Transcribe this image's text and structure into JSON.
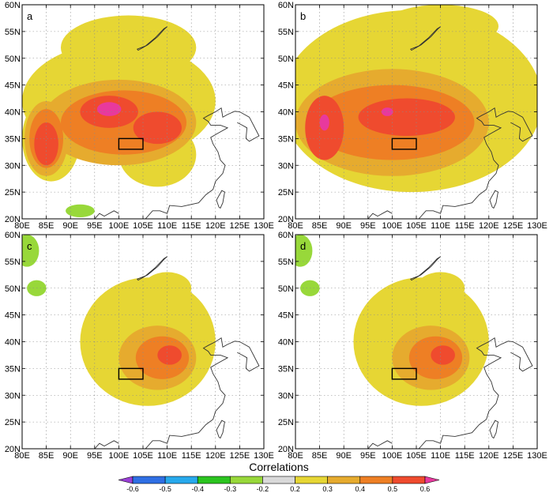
{
  "lon_ticks": [
    "80E",
    "85E",
    "90E",
    "95E",
    "100E",
    "105E",
    "110E",
    "115E",
    "120E",
    "125E",
    "130E"
  ],
  "lat_ticks": [
    "60N",
    "55N",
    "50N",
    "45N",
    "40N",
    "35N",
    "30N",
    "25N",
    "20N"
  ],
  "lon_range": [
    80,
    130
  ],
  "lat_range": [
    20,
    60
  ],
  "colorbar": {
    "title": "Correlations",
    "tick_labels": [
      "-0.6",
      "-0.5",
      "-0.4",
      "-0.3",
      "-0.2",
      "0.2",
      "0.3",
      "0.4",
      "0.5",
      "0.6"
    ],
    "colors": [
      "#9a3fd6",
      "#2f6fe4",
      "#27a9ec",
      "#2bc41f",
      "#98d83a",
      "#d9d9d9",
      "#e6d634",
      "#e6ab2e",
      "#ee7f24",
      "#ef4b2e",
      "#e8399d"
    ]
  },
  "target_box": {
    "lon": [
      100,
      105
    ],
    "lat": [
      33,
      35
    ]
  },
  "panels": [
    {
      "letter": "a",
      "blobs": [
        {
          "level": 1,
          "lon": 100,
          "lat": 42,
          "rx": 20,
          "ry": 11
        },
        {
          "level": 1,
          "lon": 86,
          "lat": 35,
          "rx": 6,
          "ry": 8
        },
        {
          "level": 1,
          "lon": 102,
          "lat": 52,
          "rx": 14,
          "ry": 6
        },
        {
          "level": 1,
          "lon": 108,
          "lat": 32,
          "rx": 8,
          "ry": 6
        },
        {
          "level": 2,
          "lon": 100,
          "lat": 38,
          "rx": 16,
          "ry": 8
        },
        {
          "level": 2,
          "lon": 85,
          "lat": 35,
          "rx": 4.5,
          "ry": 7
        },
        {
          "level": 3,
          "lon": 101,
          "lat": 38,
          "rx": 13,
          "ry": 6
        },
        {
          "level": 3,
          "lon": 85,
          "lat": 35,
          "rx": 3.5,
          "ry": 5.5
        },
        {
          "level": 4,
          "lon": 98,
          "lat": 40,
          "rx": 6,
          "ry": 3
        },
        {
          "level": 4,
          "lon": 108,
          "lat": 37,
          "rx": 5,
          "ry": 3
        },
        {
          "level": 4,
          "lon": 85,
          "lat": 34,
          "rx": 2.5,
          "ry": 4
        },
        {
          "level": 5,
          "lon": 98,
          "lat": 40.5,
          "rx": 2.5,
          "ry": 1.3
        }
      ],
      "neg_blobs": [
        {
          "lon": 92,
          "lat": 21.5,
          "rx": 3,
          "ry": 1.2
        }
      ]
    },
    {
      "letter": "b",
      "blobs": [
        {
          "level": 1,
          "lon": 104,
          "lat": 42,
          "rx": 27,
          "ry": 17
        },
        {
          "level": 1,
          "lon": 110,
          "lat": 56,
          "rx": 12,
          "ry": 4
        },
        {
          "level": 2,
          "lon": 100,
          "lat": 38,
          "rx": 20,
          "ry": 10
        },
        {
          "level": 3,
          "lon": 100,
          "lat": 38,
          "rx": 17,
          "ry": 7
        },
        {
          "level": 4,
          "lon": 86,
          "lat": 37,
          "rx": 4,
          "ry": 6
        },
        {
          "level": 4,
          "lon": 103,
          "lat": 39,
          "rx": 10,
          "ry": 3.5
        },
        {
          "level": 5,
          "lon": 86,
          "lat": 38,
          "rx": 1,
          "ry": 1.5
        },
        {
          "level": 5,
          "lon": 99,
          "lat": 40,
          "rx": 1.2,
          "ry": 0.8
        }
      ],
      "neg_blobs": []
    },
    {
      "letter": "c",
      "blobs": [
        {
          "level": 1,
          "lon": 106,
          "lat": 40,
          "rx": 14,
          "ry": 12
        },
        {
          "level": 1,
          "lon": 110,
          "lat": 50,
          "rx": 5,
          "ry": 3
        },
        {
          "level": 2,
          "lon": 108,
          "lat": 37,
          "rx": 8,
          "ry": 6
        },
        {
          "level": 3,
          "lon": 109,
          "lat": 37,
          "rx": 5.5,
          "ry": 4
        },
        {
          "level": 4,
          "lon": 110.5,
          "lat": 37.5,
          "rx": 2.5,
          "ry": 1.8
        }
      ],
      "neg_blobs": [
        {
          "lon": 81,
          "lat": 57,
          "rx": 2.5,
          "ry": 3
        },
        {
          "lon": 83,
          "lat": 50,
          "rx": 2,
          "ry": 1.5
        }
      ]
    },
    {
      "letter": "d",
      "blobs": [
        {
          "level": 1,
          "lon": 106,
          "lat": 40,
          "rx": 14,
          "ry": 12
        },
        {
          "level": 1,
          "lon": 110,
          "lat": 50,
          "rx": 5,
          "ry": 3
        },
        {
          "level": 2,
          "lon": 108,
          "lat": 37,
          "rx": 8,
          "ry": 6
        },
        {
          "level": 3,
          "lon": 109,
          "lat": 37,
          "rx": 5.5,
          "ry": 4
        },
        {
          "level": 4,
          "lon": 110.5,
          "lat": 37.5,
          "rx": 2.5,
          "ry": 1.8
        }
      ],
      "neg_blobs": [
        {
          "lon": 81,
          "lat": 57,
          "rx": 2.5,
          "ry": 3
        },
        {
          "lon": 83,
          "lat": 50,
          "rx": 2,
          "ry": 1.5
        }
      ]
    }
  ],
  "coast_path": [
    [
      105.5,
      20
    ],
    [
      107,
      21.5
    ],
    [
      108.5,
      21.5
    ],
    [
      110,
      21
    ],
    [
      110.5,
      22.5
    ],
    [
      113,
      22.3
    ],
    [
      116.5,
      23
    ],
    [
      118,
      24.5
    ],
    [
      119.5,
      25.5
    ],
    [
      120,
      27
    ],
    [
      121.5,
      28.5
    ],
    [
      122,
      30
    ],
    [
      121,
      31
    ],
    [
      120.5,
      32.5
    ],
    [
      119.5,
      34
    ],
    [
      119,
      35.2
    ],
    [
      120.5,
      36
    ],
    [
      122.5,
      37
    ],
    [
      121,
      37.5
    ],
    [
      119,
      37.5
    ],
    [
      118.5,
      38.2
    ],
    [
      117.5,
      38.8
    ],
    [
      118.5,
      39.3
    ],
    [
      120,
      40
    ],
    [
      121.2,
      40.7
    ],
    [
      121.5,
      39
    ],
    [
      122.5,
      39.5
    ],
    [
      124,
      40.1
    ],
    [
      125,
      40
    ],
    [
      127,
      39
    ],
    [
      129,
      35.5
    ],
    [
      127,
      34.5
    ],
    [
      126.3,
      35
    ],
    [
      126.5,
      37
    ],
    [
      125.5,
      37.5
    ],
    [
      124.5,
      38
    ]
  ],
  "taiwan": [
    [
      121,
      22
    ],
    [
      121.5,
      23
    ],
    [
      121.9,
      25
    ],
    [
      121.3,
      25.3
    ],
    [
      120.2,
      23.5
    ],
    [
      120.7,
      22.2
    ]
  ],
  "hainan": [
    [
      108.6,
      19.2
    ],
    [
      110,
      20
    ],
    [
      111,
      19.8
    ],
    [
      110.3,
      18.5
    ],
    [
      109,
      18.3
    ]
  ],
  "baikal": [
    [
      104,
      51.5
    ],
    [
      106,
      52.5
    ],
    [
      108,
      54
    ],
    [
      109.5,
      55.5
    ],
    [
      110,
      55.9
    ],
    [
      109.3,
      55.5
    ],
    [
      107.5,
      53.8
    ],
    [
      105.5,
      52.3
    ],
    [
      103.8,
      51.7
    ]
  ],
  "mekong": [
    [
      95,
      20
    ],
    [
      96,
      21
    ],
    [
      97,
      20.5
    ],
    [
      99,
      21.5
    ],
    [
      100,
      21
    ]
  ]
}
